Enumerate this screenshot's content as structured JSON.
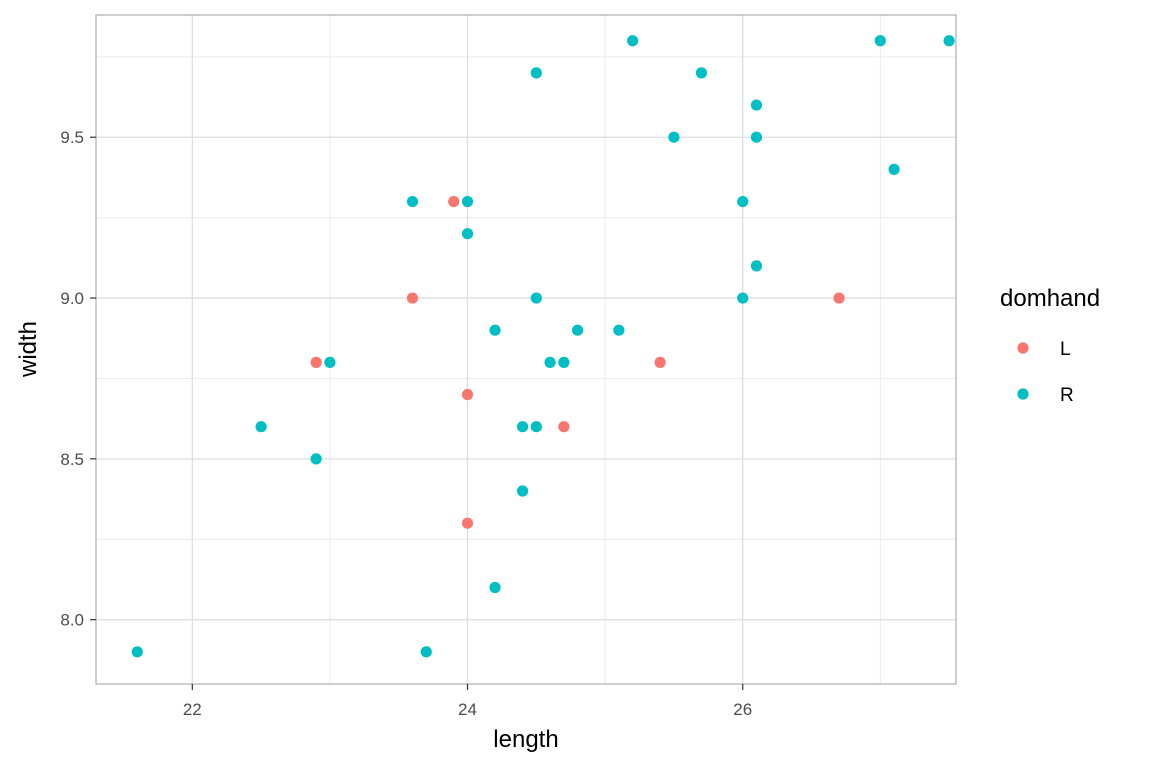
{
  "chart_data": {
    "type": "scatter",
    "title": "",
    "xlabel": "length",
    "ylabel": "width",
    "xlim": [
      21.3,
      27.55
    ],
    "ylim": [
      7.8,
      9.88
    ],
    "x_ticks": [
      22,
      24,
      26
    ],
    "y_ticks": [
      8.0,
      8.5,
      9.0,
      9.5
    ],
    "x_tick_labels": [
      "22",
      "24",
      "26"
    ],
    "y_tick_labels": [
      "8.0",
      "8.5",
      "9.0",
      "9.5"
    ],
    "grid": true,
    "legend": {
      "title": "domhand",
      "position": "right"
    },
    "series": [
      {
        "name": "L",
        "color": "#F8766D",
        "points": [
          [
            23.9,
            9.3
          ],
          [
            23.6,
            9.0
          ],
          [
            22.9,
            8.8
          ],
          [
            24.0,
            8.7
          ],
          [
            24.7,
            8.6
          ],
          [
            24.0,
            8.3
          ],
          [
            25.4,
            8.8
          ],
          [
            26.7,
            9.0
          ]
        ]
      },
      {
        "name": "R",
        "color": "#00BFC4",
        "points": [
          [
            25.2,
            9.8
          ],
          [
            27.0,
            9.8
          ],
          [
            27.5,
            9.8
          ],
          [
            24.5,
            9.7
          ],
          [
            25.7,
            9.7
          ],
          [
            26.1,
            9.6
          ],
          [
            25.5,
            9.5
          ],
          [
            26.1,
            9.5
          ],
          [
            27.1,
            9.4
          ],
          [
            23.6,
            9.3
          ],
          [
            24.0,
            9.3
          ],
          [
            26.0,
            9.3
          ],
          [
            24.0,
            9.2
          ],
          [
            26.1,
            9.1
          ],
          [
            24.5,
            9.0
          ],
          [
            26.0,
            9.0
          ],
          [
            24.2,
            8.9
          ],
          [
            24.8,
            8.9
          ],
          [
            25.1,
            8.9
          ],
          [
            23.0,
            8.8
          ],
          [
            24.6,
            8.8
          ],
          [
            24.7,
            8.8
          ],
          [
            22.5,
            8.6
          ],
          [
            24.4,
            8.6
          ],
          [
            24.5,
            8.6
          ],
          [
            22.9,
            8.5
          ],
          [
            24.4,
            8.4
          ],
          [
            24.2,
            8.1
          ],
          [
            21.6,
            7.9
          ],
          [
            23.7,
            7.9
          ]
        ]
      }
    ]
  }
}
